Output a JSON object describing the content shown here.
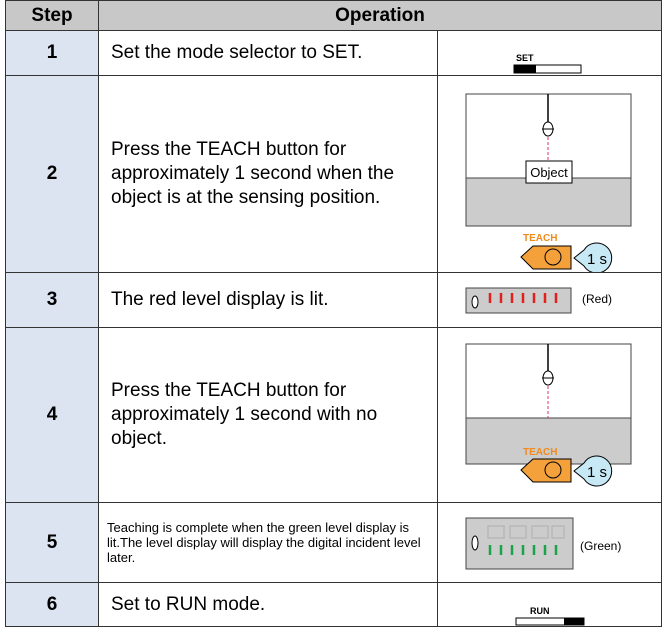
{
  "header": {
    "step": "Step",
    "operation": "Operation"
  },
  "rows": [
    {
      "step": "1",
      "text": "Set the mode selector to SET.",
      "figure": {
        "label": "SET"
      }
    },
    {
      "step": "2",
      "text": "Press the TEACH button for approximately 1 second when the object is at the sensing position.",
      "figure": {
        "object": "Object",
        "button": "TEACH",
        "time": "1 s"
      }
    },
    {
      "step": "3",
      "text": "The red level display is lit.",
      "figure": {
        "note": "(Red)"
      }
    },
    {
      "step": "4",
      "text": "Press the TEACH button for approximately 1 second with no object.",
      "figure": {
        "button": "TEACH",
        "time": "1 s"
      }
    },
    {
      "step": "5",
      "text": "Teaching is complete when the green level display is lit.The level display will display the digital incident level later.",
      "figure": {
        "note": "(Green)"
      }
    },
    {
      "step": "6",
      "text": "Set to RUN mode.",
      "figure": {
        "label": "RUN"
      }
    }
  ]
}
